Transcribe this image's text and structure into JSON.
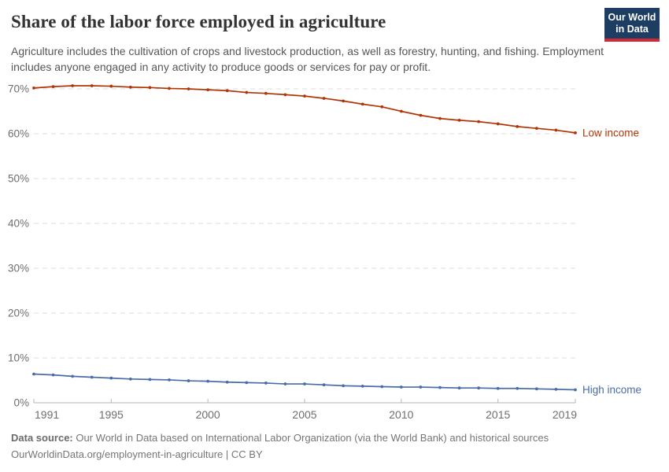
{
  "header": {
    "title": "Share of the labor force employed in agriculture",
    "subtitle": "Agriculture includes the cultivation of crops and livestock production, as well as forestry, hunting, and fishing. Employment includes anyone engaged in any activity to produce goods or services for pay or profit.",
    "logo": {
      "line1": "Our World",
      "line2": "in Data"
    }
  },
  "colors": {
    "logo_bg": "#1d3d63",
    "logo_accent": "#cf2a33",
    "low_income_line": "#B13507",
    "high_income_line": "#4A6CA8",
    "gridline": "#dddddd",
    "axis": "#b6b6b6",
    "tick_text": "#6e6e6e"
  },
  "chart_data": {
    "type": "line",
    "title": "Share of the labor force employed in agriculture",
    "x": [
      1991,
      1992,
      1993,
      1994,
      1995,
      1996,
      1997,
      1998,
      1999,
      2000,
      2001,
      2002,
      2003,
      2004,
      2005,
      2006,
      2007,
      2008,
      2009,
      2010,
      2011,
      2012,
      2013,
      2014,
      2015,
      2016,
      2017,
      2018,
      2019
    ],
    "series": [
      {
        "name": "Low income",
        "color": "#B13507",
        "values": [
          70.2,
          70.5,
          70.7,
          70.7,
          70.6,
          70.4,
          70.3,
          70.1,
          70.0,
          69.8,
          69.6,
          69.2,
          69.0,
          68.7,
          68.4,
          67.9,
          67.3,
          66.6,
          66.0,
          65.0,
          64.1,
          63.4,
          63.0,
          62.7,
          62.2,
          61.6,
          61.2,
          60.8,
          60.2
        ]
      },
      {
        "name": "High income",
        "color": "#4A6CA8",
        "values": [
          6.4,
          6.2,
          5.9,
          5.7,
          5.5,
          5.3,
          5.2,
          5.1,
          4.9,
          4.8,
          4.6,
          4.5,
          4.4,
          4.2,
          4.2,
          4.0,
          3.8,
          3.7,
          3.6,
          3.5,
          3.5,
          3.4,
          3.3,
          3.3,
          3.2,
          3.2,
          3.1,
          3.0,
          2.9
        ]
      }
    ],
    "ylim": [
      0,
      70
    ],
    "yticks": [
      0,
      10,
      20,
      30,
      40,
      50,
      60,
      70
    ],
    "ytick_suffix": "%",
    "xticks": [
      1991,
      1995,
      2000,
      2005,
      2010,
      2015,
      2019
    ],
    "grid": true,
    "legend_position": "end-of-line"
  },
  "footer": {
    "source_label": "Data source:",
    "source_text": "Our World in Data based on International Labor Organization (via the World Bank) and historical sources",
    "link": "OurWorldinData.org/employment-in-agriculture",
    "license": "| CC BY"
  }
}
